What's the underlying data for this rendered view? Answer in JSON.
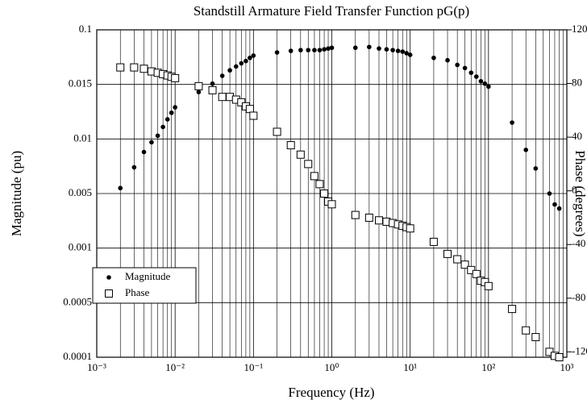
{
  "chart_data": {
    "type": "scatter",
    "title": "Standstill Armature Field Transfer Function pG(p)",
    "xlabel": "Frequency (Hz)",
    "ylabel": "Magnitude (pu)",
    "y2label": "Phase (degrees)",
    "xscale": "log",
    "xlim": [
      0.001,
      1000
    ],
    "xticks": [
      {
        "value": 0.001,
        "label": "10⁻³"
      },
      {
        "value": 0.01,
        "label": "10⁻²"
      },
      {
        "value": 0.1,
        "label": "10⁻¹"
      },
      {
        "value": 1,
        "label": "10⁰"
      },
      {
        "value": 10,
        "label": "10¹"
      },
      {
        "value": 100,
        "label": "10²"
      },
      {
        "value": 1000,
        "label": "10³"
      }
    ],
    "yscale": "ordinal-ticks",
    "ylim": [
      0.0001,
      0.1
    ],
    "yticks": [
      0.0001,
      0.0005,
      0.001,
      0.005,
      0.01,
      0.015,
      0.1
    ],
    "y2lim": [
      -124,
      120
    ],
    "y2ticks": [
      -120,
      -80,
      -40,
      0,
      40,
      80,
      120
    ],
    "grid": true,
    "legend": "lower left",
    "x": [
      0.002,
      0.003,
      0.004,
      0.005,
      0.006,
      0.007,
      0.008,
      0.009,
      0.01,
      0.02,
      0.03,
      0.04,
      0.05,
      0.06,
      0.07,
      0.08,
      0.09,
      0.1,
      0.2,
      0.3,
      0.4,
      0.5,
      0.6,
      0.7,
      0.8,
      0.9,
      1,
      2,
      3,
      4,
      5,
      6,
      7,
      8,
      9,
      10,
      20,
      30,
      40,
      50,
      60,
      70,
      80,
      90,
      100,
      200,
      300,
      400,
      600,
      700,
      800
    ],
    "series": [
      {
        "name": "Magnitude",
        "color": "#000000",
        "marker": "circle",
        "values": [
          0.0055,
          0.0074,
          0.0088,
          0.0097,
          0.0103,
          0.0111,
          0.0118,
          0.0124,
          0.0129,
          0.0143,
          0.0162,
          0.0284,
          0.0369,
          0.0429,
          0.0478,
          0.0514,
          0.0563,
          0.0599,
          0.0648,
          0.0672,
          0.0684,
          0.0684,
          0.0684,
          0.0684,
          0.0696,
          0.0709,
          0.0721,
          0.0721,
          0.0733,
          0.0709,
          0.0696,
          0.0684,
          0.0672,
          0.066,
          0.0636,
          0.0611,
          0.0563,
          0.0526,
          0.0454,
          0.0405,
          0.0332,
          0.0271,
          0.0199,
          0.0162,
          0.0148,
          0.0115,
          0.009,
          0.0073,
          0.005,
          0.0042,
          0.0039
        ]
      },
      {
        "name": "Phase",
        "color": "#000000",
        "marker": "square",
        "axis": "y2",
        "values": [
          92,
          92,
          91,
          89,
          88,
          87,
          86,
          85,
          84,
          78,
          75,
          70,
          70,
          68,
          66,
          63,
          61,
          56,
          44,
          34,
          27,
          20,
          11,
          5,
          -2,
          -8,
          -10,
          -18,
          -20,
          -22,
          -23,
          -24,
          -25,
          -26,
          -27,
          -28,
          -38,
          -47,
          -51,
          -55,
          -59,
          -62,
          -67,
          -68,
          -71,
          -88,
          -104,
          -109,
          -120,
          -123,
          -124
        ]
      }
    ]
  }
}
